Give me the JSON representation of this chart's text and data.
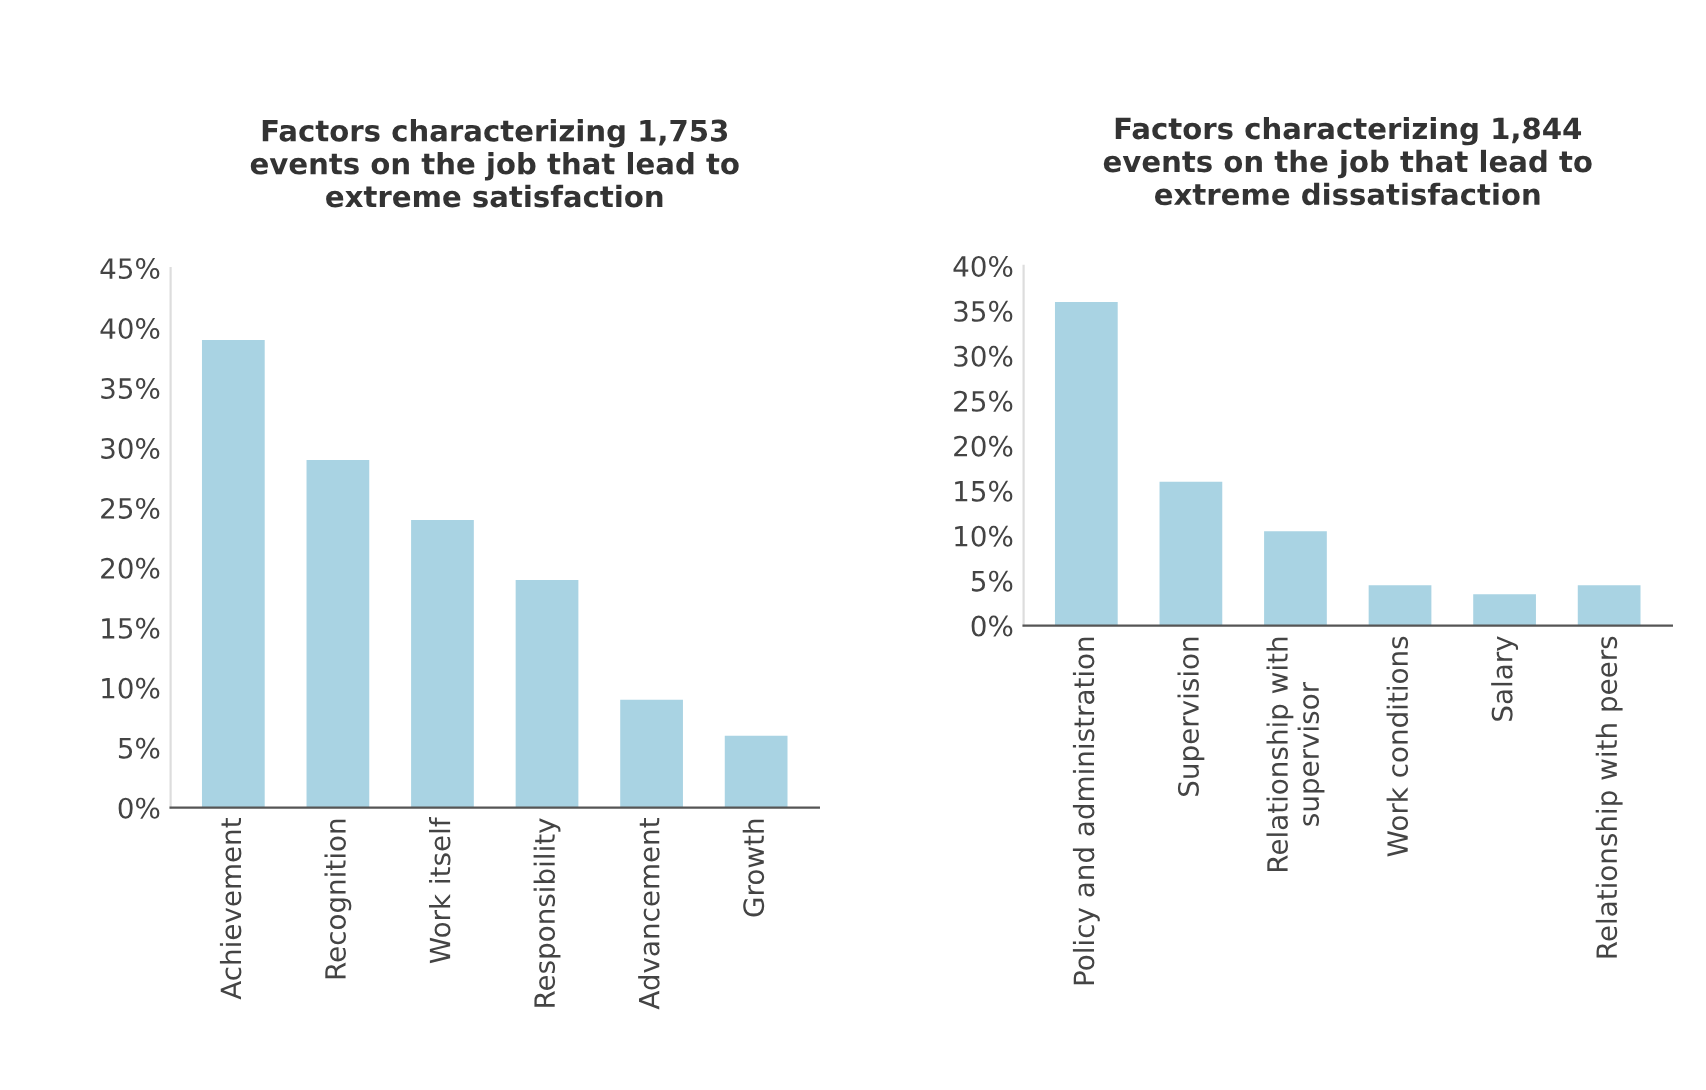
{
  "chart_data": [
    {
      "type": "bar",
      "title": "Factors characterizing 1,753\nevents on the job that lead to\nextreme satisfaction",
      "categories": [
        "Achievement",
        "Recognition",
        "Work itself",
        "Responsibility",
        "Advancement",
        "Growth"
      ],
      "values": [
        39,
        29,
        24,
        19,
        9,
        6
      ],
      "color": "#a9d3e3",
      "ylim": [
        0,
        45
      ],
      "yticks": [
        {
          "value": 0,
          "label": "0%"
        },
        {
          "value": 5,
          "label": "5%"
        },
        {
          "value": 10,
          "label": "10%"
        },
        {
          "value": 15,
          "label": "15%"
        },
        {
          "value": 20,
          "label": "20%"
        },
        {
          "value": 25,
          "label": "25%"
        },
        {
          "value": 30,
          "label": "30%"
        },
        {
          "value": 35,
          "label": "35%"
        },
        {
          "value": 40,
          "label": "40%"
        },
        {
          "value": 45,
          "label": "45%"
        }
      ]
    },
    {
      "type": "bar",
      "title": "Factors characterizing 1,844\nevents on the job that lead to\nextreme dissatisfaction",
      "categories": [
        "Policy and administration",
        "Supervision",
        "Relationship with\nsupervisor",
        "Work conditions",
        "Salary",
        "Relationship with peers"
      ],
      "values": [
        36,
        16,
        10.5,
        4.5,
        3.5,
        4.5
      ],
      "color": "#a9d3e3",
      "ylim": [
        0,
        40
      ],
      "yticks": [
        {
          "value": 0,
          "label": "0%"
        },
        {
          "value": 5,
          "label": "5%"
        },
        {
          "value": 10,
          "label": "10%"
        },
        {
          "value": 15,
          "label": "15%"
        },
        {
          "value": 20,
          "label": "20%"
        },
        {
          "value": 25,
          "label": "25%"
        },
        {
          "value": 30,
          "label": "30%"
        },
        {
          "value": 35,
          "label": "35%"
        },
        {
          "value": 40,
          "label": "40%"
        }
      ]
    }
  ]
}
